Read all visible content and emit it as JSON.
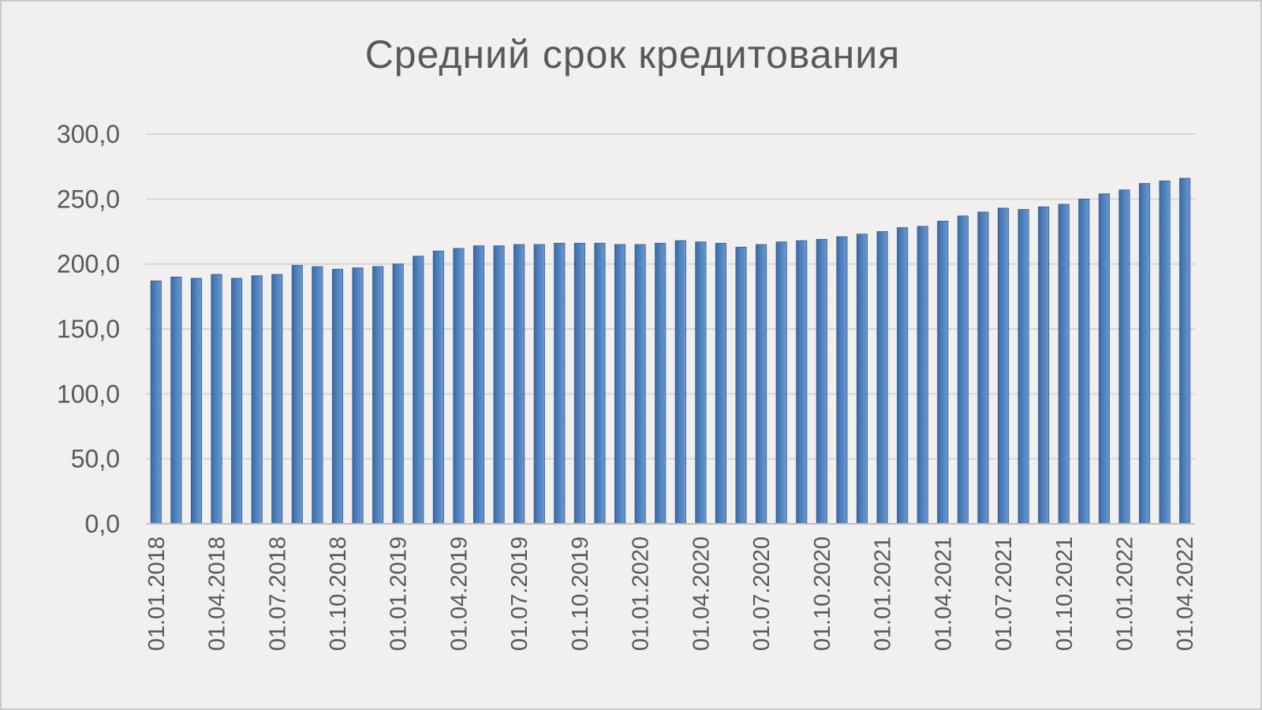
{
  "chart_data": {
    "type": "bar",
    "title": "Средний срок кредитования",
    "xlabel": "",
    "ylabel": "",
    "ylim": [
      0,
      300
    ],
    "yticks": [
      "0,0",
      "50,0",
      "100,0",
      "150,0",
      "200,0",
      "250,0",
      "300,0"
    ],
    "grid": true,
    "legend": "none",
    "bar_color": "#4f81bd",
    "categories": [
      "01.01.2018",
      "01.02.2018",
      "01.03.2018",
      "01.04.2018",
      "01.05.2018",
      "01.06.2018",
      "01.07.2018",
      "01.08.2018",
      "01.09.2018",
      "01.10.2018",
      "01.11.2018",
      "01.12.2018",
      "01.01.2019",
      "01.02.2019",
      "01.03.2019",
      "01.04.2019",
      "01.05.2019",
      "01.06.2019",
      "01.07.2019",
      "01.08.2019",
      "01.09.2019",
      "01.10.2019",
      "01.11.2019",
      "01.12.2019",
      "01.01.2020",
      "01.02.2020",
      "01.03.2020",
      "01.04.2020",
      "01.05.2020",
      "01.06.2020",
      "01.07.2020",
      "01.08.2020",
      "01.09.2020",
      "01.10.2020",
      "01.11.2020",
      "01.12.2020",
      "01.01.2021",
      "01.02.2021",
      "01.03.2021",
      "01.04.2021",
      "01.05.2021",
      "01.06.2021",
      "01.07.2021",
      "01.08.2021",
      "01.09.2021",
      "01.10.2021",
      "01.11.2021",
      "01.12.2021",
      "01.01.2022",
      "01.02.2022",
      "01.03.2022",
      "01.04.2022"
    ],
    "visible_tick_labels": [
      "01.01.2018",
      "01.04.2018",
      "01.07.2018",
      "01.10.2018",
      "01.01.2019",
      "01.04.2019",
      "01.07.2019",
      "01.10.2019",
      "01.01.2020",
      "01.04.2020",
      "01.07.2020",
      "01.10.2020",
      "01.01.2021",
      "01.04.2021",
      "01.07.2021",
      "01.10.2021",
      "01.01.2022",
      "01.04.2022"
    ],
    "values": [
      187,
      190,
      189,
      192,
      189,
      191,
      192,
      199,
      198,
      196,
      197,
      198,
      200,
      206,
      210,
      212,
      214,
      214,
      215,
      215,
      216,
      216,
      216,
      215,
      215,
      216,
      218,
      217,
      216,
      213,
      215,
      217,
      218,
      219,
      221,
      223,
      225,
      228,
      229,
      233,
      237,
      240,
      243,
      242,
      244,
      246,
      250,
      254,
      257,
      262,
      264,
      266
    ]
  }
}
